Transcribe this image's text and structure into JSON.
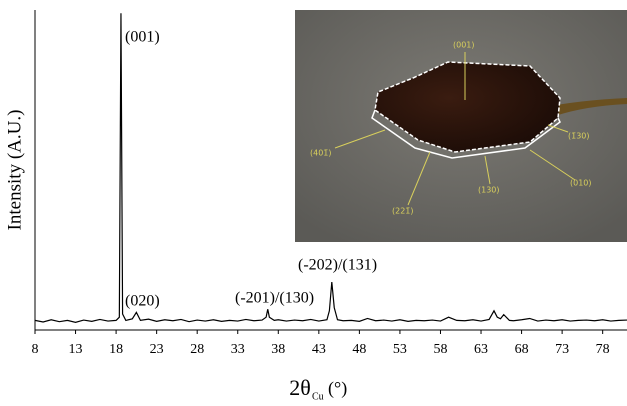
{
  "chart_data": {
    "type": "line",
    "ylabel": "Intensity (A.U.)",
    "xlabel": "2θ",
    "xlabel_sub": "Cu",
    "xlabel_unit": "(°)",
    "xlim": [
      8,
      81
    ],
    "ylim": [
      0,
      100
    ],
    "xticks": [
      8,
      13,
      18,
      23,
      28,
      33,
      38,
      43,
      48,
      53,
      58,
      63,
      68,
      73,
      78
    ],
    "color": "#000000",
    "x": [
      8,
      9,
      10,
      11,
      12,
      13,
      14,
      15,
      16,
      17,
      18,
      18.4,
      18.6,
      18.8,
      19.2,
      20,
      20.5,
      21,
      22,
      23,
      24,
      25,
      26,
      27,
      28,
      29,
      30,
      31,
      32,
      33,
      34,
      35,
      36,
      36.5,
      36.7,
      36.9,
      37.5,
      38,
      39,
      40,
      41,
      42,
      43,
      44,
      44.3,
      44.6,
      44.9,
      45.3,
      46,
      47,
      48,
      49,
      50,
      51,
      52,
      53,
      54,
      55,
      56,
      57,
      58,
      59,
      60,
      61,
      62,
      63,
      64,
      64.6,
      65,
      65.4,
      65.8,
      66.5,
      67,
      68,
      69,
      70,
      71,
      72,
      73,
      74,
      75,
      76,
      77,
      78,
      79,
      80,
      81
    ],
    "values": [
      3,
      2.5,
      3.2,
      2.6,
      3,
      2.4,
      3.1,
      2.7,
      3.3,
      2.8,
      3,
      4,
      99,
      5,
      3,
      3.5,
      5.5,
      3,
      3.4,
      2.7,
      3.2,
      2.9,
      3.3,
      2.6,
      3.1,
      2.8,
      3.2,
      2.7,
      3,
      2.8,
      3.3,
      2.9,
      3.1,
      4,
      6.5,
      4,
      3,
      3.2,
      2.8,
      3.1,
      2.9,
      3.3,
      2.8,
      3.2,
      6,
      15,
      7,
      3.2,
      2.9,
      3,
      2.7,
      3.6,
      2.9,
      3.1,
      2.8,
      3.2,
      2.7,
      3,
      2.9,
      3.1,
      2.8,
      4,
      3,
      2.9,
      3.2,
      2.8,
      3.3,
      6,
      4,
      3.5,
      4.8,
      3,
      2.9,
      3.2,
      3.6,
      2.8,
      3.1,
      2.9,
      3.2,
      2.8,
      3,
      3.1,
      2.9,
      3.2,
      2.8,
      3,
      3.1
    ],
    "annotations": [
      "(001)",
      "(020)",
      "(-201)/(130)",
      "(-202)/(131)"
    ],
    "inset_labels": [
      "(001)",
      "(1̄30)",
      "(010)",
      "(130)",
      "(221̄)",
      "(401̄)"
    ]
  }
}
